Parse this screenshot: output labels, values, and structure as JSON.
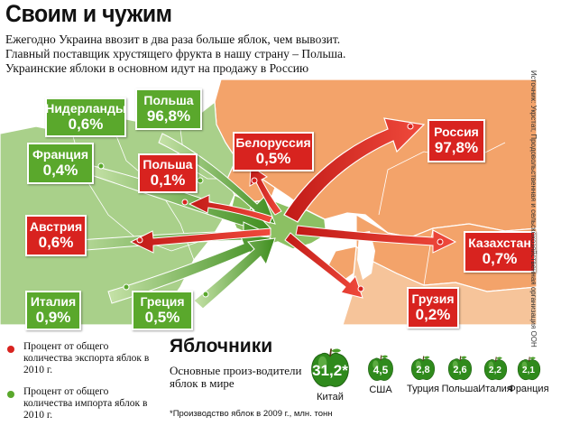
{
  "title": "Своим и чужим",
  "subtitle": [
    "Ежегодно Украина ввозит в два раза больше яблок, чем вывозит.",
    "Главный поставщик хрустящего фрукта в нашу страну – Польша.",
    "Украинские яблоки в основном идут на продажу в Россию"
  ],
  "source": "Источник: Укрстат, Продовольственная и сельскохозяйственная организация ООН",
  "colors": {
    "import": "#5aa82c",
    "export": "#d8231f",
    "map_orange": "#f3a36a",
    "map_green": "#a9d08a",
    "sea": "#ffffff"
  },
  "import_labels": [
    {
      "country": "Нидерланды",
      "value": "0,6%"
    },
    {
      "country": "Польша",
      "value": "96,8%"
    },
    {
      "country": "Франция",
      "value": "0,4%"
    },
    {
      "country": "Италия",
      "value": "0,9%"
    },
    {
      "country": "Греция",
      "value": "0,5%"
    }
  ],
  "export_labels": [
    {
      "country": "Белоруссия",
      "value": "0,5%"
    },
    {
      "country": "Польша",
      "value": "0,1%"
    },
    {
      "country": "Австрия",
      "value": "0,6%"
    },
    {
      "country": "Россия",
      "value": "97,8%"
    },
    {
      "country": "Казахстан",
      "value": "0,7%"
    },
    {
      "country": "Грузия",
      "value": "0,2%"
    }
  ],
  "legend": {
    "export": "Процент от общего количества экспорта яблок в 2010 г.",
    "import": "Процент от общего количества импорта яблок в 2010 г."
  },
  "producers": {
    "title": "Яблочники",
    "subtitle": "Основные произ-водители яблок в мире",
    "note": "*Производство яблок в 2009 г., млн. тонн",
    "items": [
      {
        "country": "Китай",
        "value": "31,2",
        "marker": "*"
      },
      {
        "country": "США",
        "value": "4,5",
        "marker": ""
      },
      {
        "country": "Турция",
        "value": "2,8",
        "marker": ""
      },
      {
        "country": "Польша",
        "value": "2,6",
        "marker": ""
      },
      {
        "country": "Италия",
        "value": "2,2",
        "marker": ""
      },
      {
        "country": "Франция",
        "value": "2,1",
        "marker": ""
      }
    ]
  }
}
